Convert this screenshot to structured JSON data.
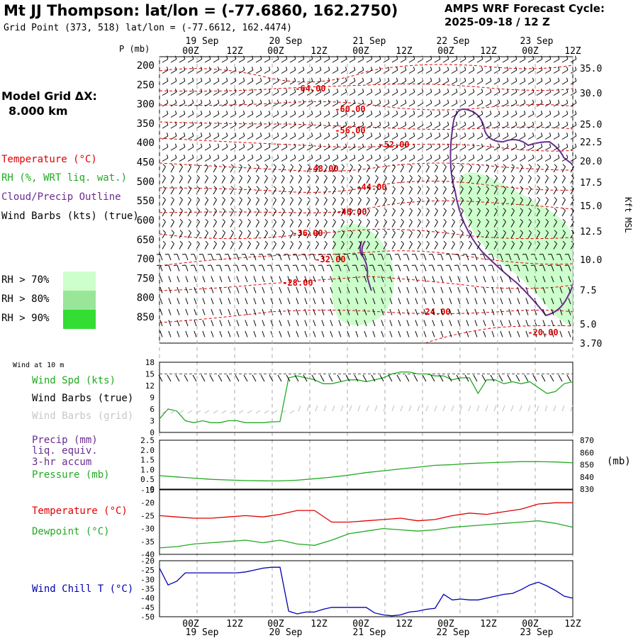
{
  "header": {
    "title": "Mt JJ Thompson:  lat/lon = (-77.6860, 162.2750)",
    "grid_point": "Grid Point (373, 518) lat/lon = (-77.6612, 162.4474)",
    "cycle_line1": "AMPS WRF Forecast Cycle:",
    "cycle_line2": "2025-09-18 / 12  Z"
  },
  "legend": {
    "model_grid_line1": "Model Grid ΔX:",
    "model_grid_line2": "8.000 km",
    "temperature": "Temperature (°C)",
    "rh": "RH (%, WRT liq. wat.)",
    "cloud": "Cloud/Precip Outline",
    "wind_barbs": "Wind Barbs (kts) (true)",
    "rh70": "RH > 70%",
    "rh80": "RH > 80%",
    "rh90": "RH > 90%",
    "colors": {
      "temp": "#e00000",
      "rh": "#22aa22",
      "cloud": "#6a2c91",
      "rh70": "#ccffcc",
      "rh80": "#99e699",
      "rh90": "#33dd33",
      "windchill": "#0000b0"
    }
  },
  "chart_data": [
    {
      "type": "heatmap",
      "title": "Vertical cross-section",
      "ylabel": "P (mb)",
      "y2label": "Kft MSL",
      "y_ticks": [
        "200",
        "250",
        "300",
        "350",
        "400",
        "450",
        "500",
        "550",
        "600",
        "650",
        "700",
        "750",
        "800",
        "850"
      ],
      "y2_ticks": [
        "35.0",
        "30.0",
        "25.0",
        "22.5",
        "20.0",
        "17.5",
        "15.0",
        "12.5",
        "10.0",
        "7.5",
        "5.0",
        "3.70"
      ],
      "x_ticks": [
        "00Z",
        "12Z",
        "00Z",
        "12Z",
        "00Z",
        "12Z",
        "00Z",
        "12Z",
        "00Z",
        "12Z"
      ],
      "x_dates": [
        "19 Sep",
        "20 Sep",
        "21 Sep",
        "22 Sep",
        "23 Sep"
      ],
      "temp_labels": [
        "-64.00",
        "-60.00",
        "-56.00",
        "-52.00",
        "-48.00",
        "-44.00",
        "-40.00",
        "-36.00",
        "-32.00",
        "-28.00",
        "-24.00",
        "-20.00"
      ]
    },
    {
      "type": "line",
      "title": "Wind at 10 m",
      "y_ticks": [
        "0",
        "3",
        "6",
        "9",
        "12",
        "15",
        "18"
      ],
      "ylim": [
        0,
        18
      ],
      "labels": {
        "speed": "Wind Spd (kts)",
        "barbs_true": "Wind Barbs (true)",
        "barbs_grid": "Wind Barbs (grid)"
      },
      "x": [
        0,
        3,
        6,
        9,
        12,
        15,
        18,
        21,
        24,
        27,
        30,
        33,
        36,
        39,
        42,
        45,
        48,
        51,
        54,
        57,
        60,
        63,
        66,
        69,
        72,
        75,
        78,
        81,
        84,
        87,
        90,
        93,
        96,
        99,
        102,
        105,
        108,
        111,
        114,
        117,
        120,
        123,
        126,
        129,
        132,
        135,
        138,
        141,
        144
      ],
      "series": [
        {
          "name": "Wind Spd (kts)",
          "values": [
            3.5,
            6,
            5.5,
            3,
            2.5,
            3,
            2.5,
            2.5,
            3,
            3,
            2.5,
            2.5,
            2.5,
            2.7,
            2.8,
            14,
            14.5,
            14,
            13.5,
            12.5,
            12.5,
            13,
            13.5,
            13.5,
            13,
            13.5,
            14,
            15,
            15.5,
            15.5,
            15,
            15,
            14.5,
            14.5,
            13.5,
            14,
            14,
            10,
            13.5,
            13.5,
            12.5,
            13,
            12.5,
            13,
            11.5,
            10,
            10.5,
            12.5,
            13
          ]
        }
      ]
    },
    {
      "type": "line",
      "title": "Precip / Pressure",
      "y_ticks": [
        "0",
        "0.5",
        "1.0",
        "1.5",
        "2.0",
        "2.5"
      ],
      "y2_ticks": [
        "830",
        "840",
        "850",
        "860",
        "870"
      ],
      "y2_unit": "(mb)",
      "ylim": [
        0,
        2.5
      ],
      "y2lim": [
        830,
        870
      ],
      "labels": {
        "precip": "Precip (mm)",
        "liq": "liq. equiv.",
        "accum": "3-hr accum",
        "pressure": "Pressure (mb)"
      },
      "x": [
        0,
        6,
        12,
        18,
        24,
        30,
        36,
        42,
        48,
        54,
        60,
        66,
        72,
        78,
        84,
        90,
        96,
        102,
        108,
        114,
        120,
        126,
        132,
        138,
        144
      ],
      "series": [
        {
          "name": "Pressure (mb)",
          "values": [
            841,
            840,
            839,
            838,
            837.5,
            837,
            836.8,
            836.7,
            837.3,
            838.5,
            839.8,
            841.5,
            843.5,
            845,
            846.5,
            848,
            849.5,
            850,
            851,
            851.5,
            852,
            852.5,
            852.5,
            852.2,
            851.5
          ]
        }
      ]
    },
    {
      "type": "line",
      "title": "Temperature / Dewpoint",
      "y_ticks": [
        "-15",
        "-20",
        "-25",
        "-30",
        "-35",
        "-40"
      ],
      "ylim": [
        -40,
        -15
      ],
      "labels": {
        "temperature": "Temperature (°C)",
        "dewpoint": "Dewpoint (°C)"
      },
      "x": [
        0,
        6,
        12,
        18,
        24,
        30,
        36,
        42,
        48,
        54,
        60,
        66,
        72,
        78,
        84,
        90,
        96,
        102,
        108,
        114,
        120,
        126,
        132,
        138,
        144
      ],
      "series": [
        {
          "name": "Temperature (°C)",
          "values": [
            -25,
            -25.5,
            -26,
            -26,
            -25.5,
            -25,
            -25.5,
            -24.5,
            -23,
            -23,
            -27.5,
            -27.5,
            -27,
            -26.5,
            -26,
            -27,
            -26.5,
            -25,
            -24,
            -24.5,
            -23.5,
            -22.5,
            -20.5,
            -20,
            -20
          ]
        },
        {
          "name": "Dewpoint (°C)",
          "values": [
            -37.5,
            -37,
            -36,
            -35.5,
            -35,
            -34.5,
            -35.5,
            -34.5,
            -36,
            -36.5,
            -34.5,
            -32,
            -31,
            -30,
            -30.5,
            -31,
            -30.5,
            -29.5,
            -29,
            -28.5,
            -28,
            -27.5,
            -27,
            -28,
            -29.5
          ]
        }
      ]
    },
    {
      "type": "line",
      "title": "Wind Chill",
      "y_ticks": [
        "-20",
        "-25",
        "-30",
        "-35",
        "-40",
        "-45",
        "-50"
      ],
      "ylim": [
        -50,
        -20
      ],
      "labels": {
        "windchill": "Wind Chill T (°C)"
      },
      "x": [
        0,
        3,
        6,
        9,
        12,
        15,
        18,
        21,
        24,
        27,
        30,
        33,
        36,
        39,
        42,
        45,
        48,
        51,
        54,
        57,
        60,
        63,
        66,
        69,
        72,
        75,
        78,
        81,
        84,
        87,
        90,
        93,
        96,
        99,
        102,
        105,
        108,
        111,
        114,
        117,
        120,
        123,
        126,
        129,
        132,
        135,
        138,
        141,
        144
      ],
      "series": [
        {
          "name": "Wind Chill T (°C)",
          "values": [
            -24,
            -33,
            -31,
            -26.5,
            -26.5,
            -26.5,
            -26.5,
            -26.5,
            -26.5,
            -26.5,
            -26,
            -25,
            -24,
            -23.5,
            -23.5,
            -47,
            -48.5,
            -47.5,
            -47.5,
            -46,
            -45,
            -45,
            -45,
            -45,
            -45,
            -48,
            -49,
            -49.5,
            -49,
            -47.5,
            -47,
            -46,
            -45.5,
            -38,
            -41,
            -40.5,
            -41,
            -41,
            -40,
            -39,
            -38,
            -37.5,
            -35.5,
            -33,
            -31.5,
            -33.5,
            -36,
            -39,
            -40
          ]
        }
      ]
    }
  ]
}
